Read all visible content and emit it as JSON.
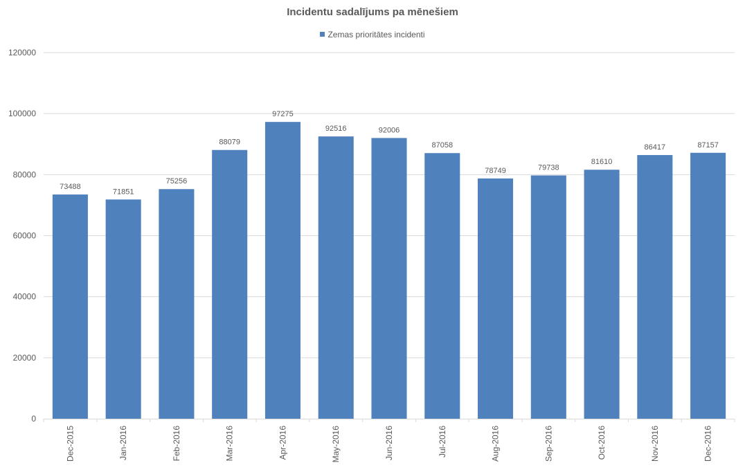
{
  "chart_data": {
    "type": "bar",
    "title": "Incidentu sadalījums pa mēnešiem",
    "categories": [
      "Dec-2015",
      "Jan-2016",
      "Feb-2016",
      "Mar-2016",
      "Apr-2016",
      "May-2016",
      "Jun-2016",
      "Jul-2016",
      "Aug-2016",
      "Sep-2016",
      "Oct-2016",
      "Nov-2016",
      "Dec-2016"
    ],
    "series": [
      {
        "name": "Zemas prioritātes incidenti",
        "values": [
          73488,
          71851,
          75256,
          88079,
          97275,
          92516,
          92006,
          87058,
          78749,
          79738,
          81610,
          86417,
          87157
        ],
        "color": "#4f81bd"
      }
    ],
    "xlabel": "",
    "ylabel": "",
    "ylim": [
      0,
      120000
    ],
    "yticks": [
      0,
      20000,
      40000,
      60000,
      80000,
      100000,
      120000
    ],
    "grid": true,
    "legend_position": "top",
    "data_labels": true
  }
}
